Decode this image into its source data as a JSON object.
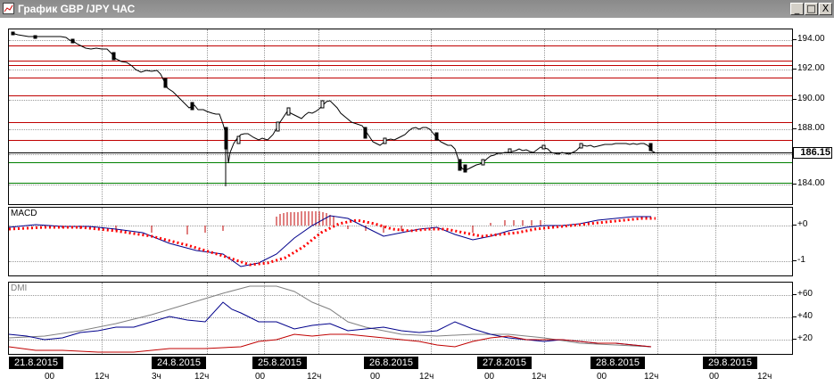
{
  "window": {
    "title": "График GBP /JPY ЧАС",
    "btn_min": "_",
    "btn_max": "□",
    "btn_close": "X"
  },
  "price_panel": {
    "axis_labels": [
      "194.00",
      "192.00",
      "190.00",
      "188.00",
      "186.15",
      "184.00"
    ],
    "current_price": "186.15"
  },
  "macd_panel": {
    "label": "MACD",
    "axis_labels": [
      "+0",
      "-1"
    ]
  },
  "dmi_panel": {
    "label": "DMI",
    "axis_labels": [
      "+60",
      "+40",
      "+20"
    ]
  },
  "dates": [
    "21.8.2015",
    "24.8.2015",
    "25.8.2015",
    "26.8.2015",
    "27.8.2015",
    "28.8.2015",
    "29.8.2015"
  ],
  "hour_labels": [
    "00",
    "12ч",
    "3ч",
    "12ч",
    "00",
    "12ч",
    "00",
    "12ч",
    "00",
    "12ч",
    "00",
    "12ч",
    "00",
    "12ч"
  ],
  "colors": {
    "support_line": "#008000",
    "resistance_line": "#c00000",
    "macd_signal": "#ff0000",
    "adx": "#808080",
    "plus_di": "#00008b",
    "minus_di": "#c00000"
  }
}
